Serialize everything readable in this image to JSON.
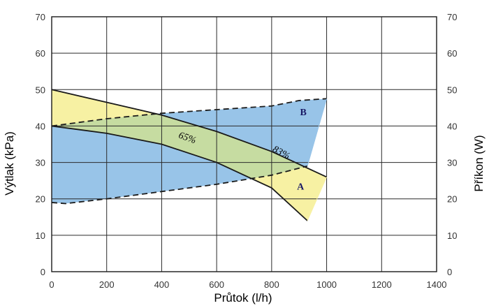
{
  "chart_data": {
    "type": "line",
    "xlabel": "Průtok (l/h)",
    "ylabel": "Výtlak (kPa)",
    "y2label": "Příkon (W)",
    "xlim": [
      0,
      1400
    ],
    "ylim": [
      0,
      70
    ],
    "y2lim": [
      0,
      70
    ],
    "xticks": [
      "0",
      "200",
      "400",
      "600",
      "800",
      "1000",
      "1200",
      "1400"
    ],
    "yticks": [
      "0",
      "10",
      "20",
      "30",
      "40",
      "50",
      "60",
      "70"
    ],
    "y2ticks": [
      "0",
      "10",
      "20",
      "30",
      "40",
      "50",
      "60",
      "70"
    ],
    "grid": true,
    "series": [
      {
        "key": "max_curve",
        "style": "solid",
        "x": [
          0,
          200,
          400,
          600,
          800,
          1000
        ],
        "y": [
          50,
          46.5,
          43,
          38.5,
          33,
          26
        ]
      },
      {
        "key": "min_curve",
        "style": "solid",
        "x": [
          0,
          200,
          400,
          600,
          800,
          930
        ],
        "y": [
          40,
          38,
          35,
          30,
          23,
          14
        ]
      },
      {
        "key": "power_upper",
        "style": "dashed",
        "x": [
          0,
          200,
          400,
          600,
          800,
          900,
          1000
        ],
        "y": [
          40,
          42,
          43.5,
          44.5,
          45.5,
          47,
          47.5
        ]
      },
      {
        "key": "power_lower",
        "style": "dashed",
        "x": [
          0,
          50,
          200,
          400,
          600,
          800,
          930
        ],
        "y": [
          19,
          18.7,
          20,
          22,
          24,
          26.5,
          29
        ]
      }
    ],
    "regions": [
      {
        "name": "A",
        "color": "#f7f1a3"
      },
      {
        "name": "B",
        "color": "#98c4e8"
      },
      {
        "name": "overlap",
        "color": "#c6dca1"
      }
    ],
    "annotations": [
      {
        "text": "A",
        "x": 905,
        "y": 22.5
      },
      {
        "text": "B",
        "x": 915,
        "y": 43
      },
      {
        "text": "65%",
        "x": 490,
        "y": 36,
        "rotate": 20
      },
      {
        "text": "83%",
        "x": 830,
        "y": 32,
        "rotate": 28
      }
    ]
  }
}
